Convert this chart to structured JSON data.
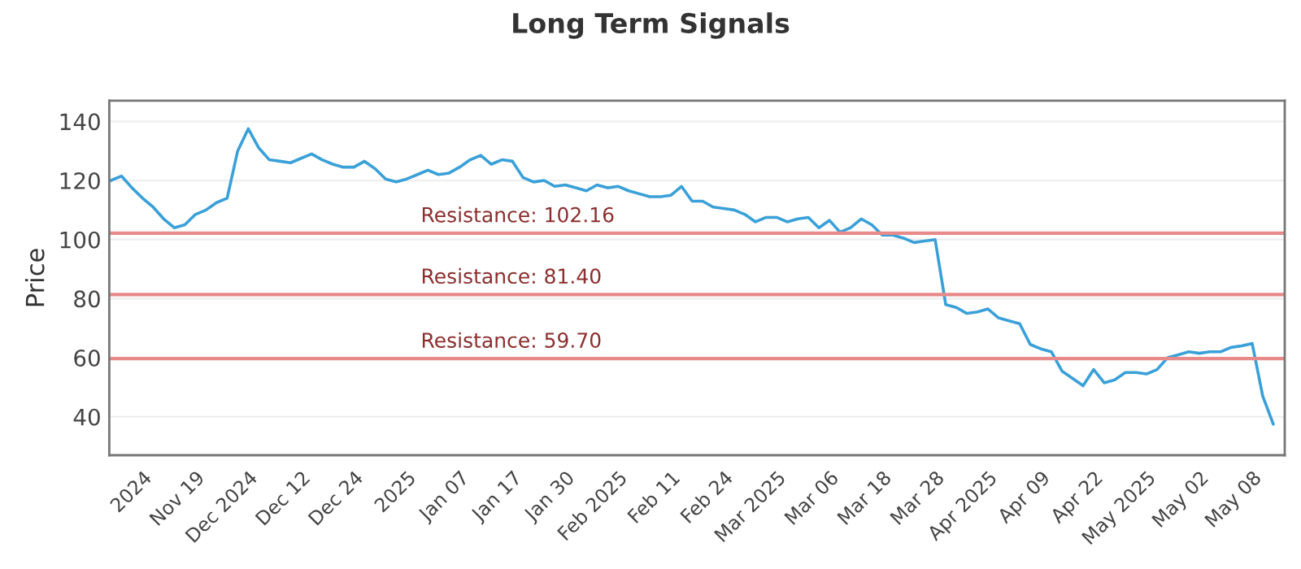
{
  "chart_data": {
    "type": "line",
    "title": "Long Term Signals",
    "ylabel": "Price",
    "categories": [
      null,
      null,
      null,
      "2024",
      null,
      null,
      null,
      null,
      "Nov 19",
      null,
      null,
      null,
      null,
      "Dec 2024",
      null,
      null,
      null,
      null,
      "Dec 12",
      null,
      null,
      null,
      null,
      "Dec 24",
      null,
      null,
      null,
      null,
      "2025",
      null,
      null,
      null,
      null,
      "Jan 07",
      null,
      null,
      null,
      null,
      "Jan 17",
      null,
      null,
      null,
      null,
      "Jan 30",
      null,
      null,
      null,
      null,
      "Feb 2025",
      null,
      null,
      null,
      null,
      "Feb 11",
      null,
      null,
      null,
      null,
      "Feb 24",
      null,
      null,
      null,
      null,
      "Mar 2025",
      null,
      null,
      null,
      null,
      "Mar 06",
      null,
      null,
      null,
      null,
      "Mar 18",
      null,
      null,
      null,
      null,
      "Mar 28",
      null,
      null,
      null,
      null,
      "Apr 2025",
      null,
      null,
      null,
      null,
      "Apr 09",
      null,
      null,
      null,
      null,
      "Apr 22",
      null,
      null,
      null,
      null,
      "May 2025",
      null,
      null,
      null,
      null,
      "May 02",
      null,
      null,
      null,
      null,
      "May 08",
      null,
      null
    ],
    "series": [
      {
        "color": "#3aa0d8",
        "values": [
          120,
          121.5,
          117.5,
          114,
          111,
          107,
          104,
          105,
          108.5,
          110,
          112.5,
          114,
          130,
          137.5,
          131,
          127,
          126.5,
          126,
          127.5,
          129,
          127,
          125.5,
          124.5,
          124.5,
          126.5,
          124,
          120.5,
          119.5,
          120.5,
          122,
          123.5,
          122,
          122.5,
          124.5,
          127,
          128.5,
          125.5,
          127,
          126.5,
          121,
          119.5,
          120,
          118,
          118.5,
          117.5,
          116.5,
          118.5,
          117.5,
          118,
          116.5,
          115.5,
          114.5,
          114.5,
          115,
          118,
          113,
          113,
          111,
          110.5,
          110,
          108.5,
          106,
          107.5,
          107.5,
          106,
          107,
          107.5,
          104,
          106.5,
          102.5,
          104,
          107,
          105,
          101.5,
          101.5,
          100.5,
          99,
          99.5,
          100,
          78,
          77,
          75,
          75.5,
          76.5,
          73.5,
          72.5,
          71.5,
          64.5,
          63,
          62,
          55.5,
          53,
          50.5,
          56,
          51.5,
          52.5,
          55,
          55,
          54.5,
          56,
          60,
          61,
          62,
          61.5,
          62,
          62,
          63.5,
          64,
          64.8,
          47,
          37.5
        ]
      }
    ],
    "ylim": [
      27,
      147
    ],
    "yticks": [
      40,
      60,
      80,
      100,
      120,
      140
    ],
    "grid": "y",
    "line_style": "solid",
    "marker": "none",
    "ref_lines": [
      {
        "axis": "y",
        "value": 102.16,
        "label": "Resistance: 102.16",
        "color": "#e88a8a"
      },
      {
        "axis": "y",
        "value": 81.4,
        "label": "Resistance: 81.40",
        "color": "#e88a8a"
      },
      {
        "axis": "y",
        "value": 59.7,
        "label": "Resistance: 59.70",
        "color": "#e88a8a"
      }
    ]
  }
}
